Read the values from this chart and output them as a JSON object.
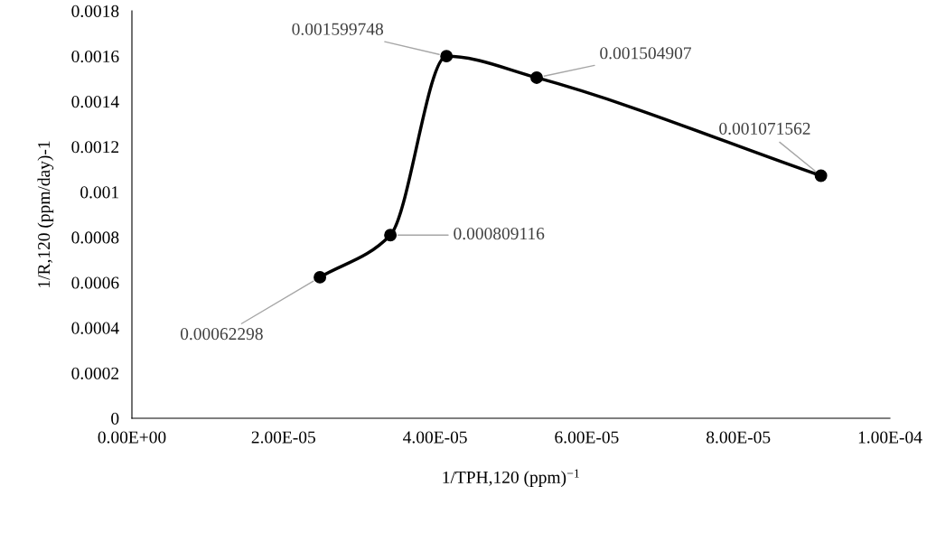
{
  "chart_data": {
    "type": "line",
    "xlabel": "1/TPH,120 (ppm)$^{−1}$",
    "ylabel": "1/R,120 (ppm/day)-1",
    "x": [
      2.48e-05,
      3.41e-05,
      4.15e-05,
      5.34e-05,
      9.09e-05
    ],
    "series": [
      {
        "color": "#000000",
        "values": [
          0.00062298,
          0.000809116,
          0.001599748,
          0.001504907,
          0.001071562
        ],
        "value_labels": [
          "0.00062298",
          "0.000809116",
          "0.001599748",
          "0.001504907",
          "0.001071562"
        ]
      }
    ],
    "xlim": [
      0,
      0.0001
    ],
    "xticks": [
      {
        "value": 0,
        "label": "0.00E+00"
      },
      {
        "value": 2e-05,
        "label": "2.00E-05"
      },
      {
        "value": 4e-05,
        "label": "4.00E-05"
      },
      {
        "value": 6e-05,
        "label": "6.00E-05"
      },
      {
        "value": 8e-05,
        "label": "8.00E-05"
      },
      {
        "value": 0.0001,
        "label": "1.00E-04"
      }
    ],
    "ylim": [
      0,
      0.0018
    ],
    "yticks": [
      0,
      0.0002,
      0.0004,
      0.0006,
      0.0008,
      0.001,
      0.0012,
      0.0014,
      0.0016,
      0.0018
    ],
    "grid": false,
    "legend": false,
    "marker": "circle",
    "line_style": "solid"
  }
}
